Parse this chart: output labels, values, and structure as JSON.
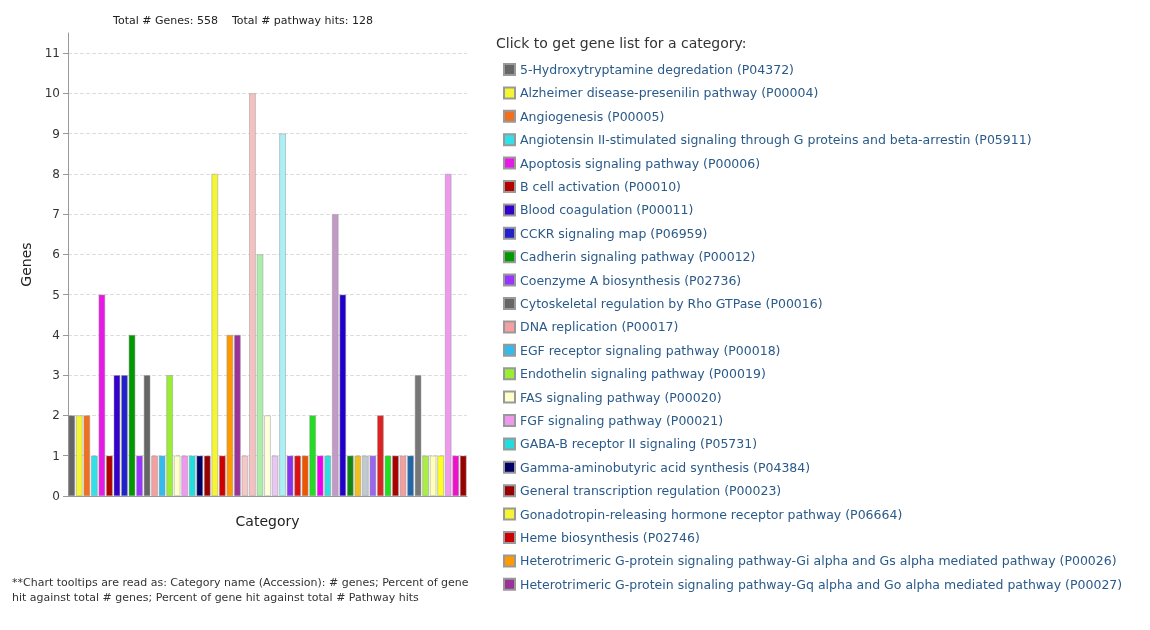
{
  "chart_data": {
    "type": "bar",
    "title": "Total # Genes: 558    Total # pathway hits: 128",
    "xlabel": "Category",
    "ylabel": "Genes",
    "legend_title": "Click to get gene list for a category:",
    "annotations": [
      "**Chart tooltips are read as: Category name (Accession): # genes; Percent of gene hit against total # genes; Percent of gene hit against total # Pathway hits"
    ],
    "categories": [
      null,
      null,
      null,
      null,
      null,
      null,
      null,
      null,
      null,
      null,
      null,
      null,
      null,
      null,
      null,
      null,
      null,
      null,
      null,
      null,
      null,
      null,
      null,
      null,
      null,
      null,
      null,
      null,
      null,
      null,
      null,
      null,
      null,
      null,
      null,
      null,
      null,
      null,
      null,
      null,
      null,
      null,
      null,
      null,
      null,
      null,
      null,
      null,
      null,
      null,
      null,
      null,
      null
    ],
    "stacked": true,
    "series": [
      {
        "name": "5-Hydroxytryptamine degredation (P04372)",
        "color": "#666666",
        "values": [
          2,
          null,
          null,
          null,
          null,
          null,
          null,
          null,
          null,
          null,
          null,
          null,
          null,
          null,
          null,
          null,
          null,
          null,
          null,
          null,
          null,
          null,
          null,
          null,
          null,
          null,
          null,
          null,
          null,
          null,
          null,
          null,
          null,
          null,
          null,
          null,
          null,
          null,
          null,
          null,
          null,
          null,
          null,
          null,
          null,
          null,
          null,
          null,
          null,
          null,
          null,
          null,
          null
        ]
      },
      {
        "name": "Alzheimer disease-presenilin pathway (P00004)",
        "color": "#f5f532",
        "values": [
          null,
          2,
          null,
          null,
          null,
          null,
          null,
          null,
          null,
          null,
          null,
          null,
          null,
          null,
          null,
          null,
          null,
          null,
          null,
          null,
          null,
          null,
          null,
          null,
          null,
          null,
          null,
          null,
          null,
          null,
          null,
          null,
          null,
          null,
          null,
          null,
          null,
          null,
          null,
          null,
          null,
          null,
          null,
          null,
          null,
          null,
          null,
          null,
          null,
          null,
          null,
          null,
          null
        ]
      },
      {
        "name": "Angiogenesis (P00005)",
        "color": "#f07020",
        "values": [
          null,
          null,
          2,
          null,
          null,
          null,
          null,
          null,
          null,
          null,
          null,
          null,
          null,
          null,
          null,
          null,
          null,
          null,
          null,
          null,
          null,
          null,
          null,
          null,
          null,
          null,
          null,
          null,
          null,
          null,
          null,
          null,
          null,
          null,
          null,
          null,
          null,
          null,
          null,
          null,
          null,
          null,
          null,
          null,
          null,
          null,
          null,
          null,
          null,
          null,
          null,
          null,
          null
        ]
      },
      {
        "name": "Angiotensin II-stimulated signaling through G proteins and beta-arrestin (P05911)",
        "color": "#33e0e8",
        "values": [
          null,
          null,
          null,
          1,
          null,
          null,
          null,
          null,
          null,
          null,
          null,
          null,
          null,
          null,
          null,
          null,
          null,
          null,
          null,
          null,
          null,
          null,
          null,
          null,
          null,
          null,
          null,
          null,
          null,
          null,
          null,
          null,
          null,
          null,
          null,
          null,
          null,
          null,
          null,
          null,
          null,
          null,
          null,
          null,
          null,
          null,
          null,
          null,
          null,
          null,
          null,
          null,
          null
        ]
      },
      {
        "name": "Apoptosis signaling pathway (P00006)",
        "color": "#e619e6",
        "values": [
          null,
          null,
          null,
          null,
          5,
          null,
          null,
          null,
          null,
          null,
          null,
          null,
          null,
          null,
          null,
          null,
          null,
          null,
          null,
          null,
          null,
          null,
          null,
          null,
          null,
          null,
          null,
          null,
          null,
          null,
          null,
          null,
          null,
          null,
          null,
          null,
          null,
          null,
          null,
          null,
          null,
          null,
          null,
          null,
          null,
          null,
          null,
          null,
          null,
          null,
          null,
          null,
          null
        ]
      },
      {
        "name": "B cell activation (P00010)",
        "color": "#b30000",
        "values": [
          null,
          null,
          null,
          null,
          null,
          1,
          null,
          null,
          null,
          null,
          null,
          null,
          null,
          null,
          null,
          null,
          null,
          null,
          null,
          null,
          null,
          null,
          null,
          null,
          null,
          null,
          null,
          null,
          null,
          null,
          null,
          null,
          null,
          null,
          null,
          null,
          null,
          null,
          null,
          null,
          null,
          null,
          null,
          null,
          null,
          null,
          null,
          null,
          null,
          null,
          null,
          null,
          null
        ]
      },
      {
        "name": "Blood coagulation (P00011)",
        "color": "#3300cc",
        "values": [
          null,
          null,
          null,
          null,
          null,
          null,
          3,
          null,
          null,
          null,
          null,
          null,
          null,
          null,
          null,
          null,
          null,
          null,
          null,
          null,
          null,
          null,
          null,
          null,
          null,
          null,
          null,
          null,
          null,
          null,
          null,
          null,
          null,
          null,
          null,
          null,
          null,
          null,
          null,
          null,
          null,
          null,
          null,
          null,
          null,
          null,
          null,
          null,
          null,
          null,
          null,
          null,
          null
        ]
      },
      {
        "name": "CCKR signaling map (P06959)",
        "color": "#2222cc",
        "values": [
          null,
          null,
          null,
          null,
          null,
          null,
          null,
          3,
          null,
          null,
          null,
          null,
          null,
          null,
          null,
          null,
          null,
          null,
          null,
          null,
          null,
          null,
          null,
          null,
          null,
          null,
          null,
          null,
          null,
          null,
          null,
          null,
          null,
          null,
          null,
          null,
          null,
          null,
          null,
          null,
          null,
          null,
          null,
          null,
          null,
          null,
          null,
          null,
          null,
          null,
          null,
          null,
          null
        ]
      },
      {
        "name": "Cadherin signaling pathway (P00012)",
        "color": "#009900",
        "values": [
          null,
          null,
          null,
          null,
          null,
          null,
          null,
          null,
          4,
          null,
          null,
          null,
          null,
          null,
          null,
          null,
          null,
          null,
          null,
          null,
          null,
          null,
          null,
          null,
          null,
          null,
          null,
          null,
          null,
          null,
          null,
          null,
          null,
          null,
          null,
          null,
          null,
          null,
          null,
          null,
          null,
          null,
          null,
          null,
          null,
          null,
          null,
          null,
          null,
          null,
          null,
          null,
          null
        ]
      },
      {
        "name": "Coenzyme A biosynthesis (P02736)",
        "color": "#9933ff",
        "values": [
          null,
          null,
          null,
          null,
          null,
          null,
          null,
          null,
          null,
          1,
          null,
          null,
          null,
          null,
          null,
          null,
          null,
          null,
          null,
          null,
          null,
          null,
          null,
          null,
          null,
          null,
          null,
          null,
          null,
          null,
          null,
          null,
          null,
          null,
          null,
          null,
          null,
          null,
          null,
          null,
          null,
          null,
          null,
          null,
          null,
          null,
          null,
          null,
          null,
          null,
          null,
          null,
          null
        ]
      },
      {
        "name": "Cytoskeletal regulation by Rho GTPase (P00016)",
        "color": "#666666",
        "values": [
          null,
          null,
          null,
          null,
          null,
          null,
          null,
          null,
          null,
          null,
          3,
          null,
          null,
          null,
          null,
          null,
          null,
          null,
          null,
          null,
          null,
          null,
          null,
          null,
          null,
          null,
          null,
          null,
          null,
          null,
          null,
          null,
          null,
          null,
          null,
          null,
          null,
          null,
          null,
          null,
          null,
          null,
          null,
          null,
          null,
          null,
          null,
          null,
          null,
          null,
          null,
          null,
          null
        ]
      },
      {
        "name": "DNA replication (P00017)",
        "color": "#f4a0a0",
        "values": [
          null,
          null,
          null,
          null,
          null,
          null,
          null,
          null,
          null,
          null,
          null,
          1,
          null,
          null,
          null,
          null,
          null,
          null,
          null,
          null,
          null,
          null,
          null,
          null,
          null,
          null,
          null,
          null,
          null,
          null,
          null,
          null,
          null,
          null,
          null,
          null,
          null,
          null,
          null,
          null,
          null,
          null,
          null,
          null,
          null,
          null,
          null,
          null,
          null,
          null,
          null,
          null,
          null
        ]
      },
      {
        "name": "EGF receptor signaling pathway (P00018)",
        "color": "#33bbee",
        "values": [
          null,
          null,
          null,
          null,
          null,
          null,
          null,
          null,
          null,
          null,
          null,
          null,
          1,
          null,
          null,
          null,
          null,
          null,
          null,
          null,
          null,
          null,
          null,
          null,
          null,
          null,
          null,
          null,
          null,
          null,
          null,
          null,
          null,
          null,
          null,
          null,
          null,
          null,
          null,
          null,
          null,
          null,
          null,
          null,
          null,
          null,
          null,
          null,
          null,
          null,
          null,
          null,
          null
        ]
      },
      {
        "name": "Endothelin signaling pathway (P00019)",
        "color": "#99ee33",
        "values": [
          null,
          null,
          null,
          null,
          null,
          null,
          null,
          null,
          null,
          null,
          null,
          null,
          null,
          3,
          null,
          null,
          null,
          null,
          null,
          null,
          null,
          null,
          null,
          null,
          null,
          null,
          null,
          null,
          null,
          null,
          null,
          null,
          null,
          null,
          null,
          null,
          null,
          null,
          null,
          null,
          null,
          null,
          null,
          null,
          null,
          null,
          null,
          null,
          null,
          null,
          null,
          null,
          null
        ]
      },
      {
        "name": "FAS signaling pathway (P00020)",
        "color": "#ffffcc",
        "values": [
          null,
          null,
          null,
          null,
          null,
          null,
          null,
          null,
          null,
          null,
          null,
          null,
          null,
          null,
          1,
          null,
          null,
          null,
          null,
          null,
          null,
          null,
          null,
          null,
          null,
          null,
          null,
          null,
          null,
          null,
          null,
          null,
          null,
          null,
          null,
          null,
          null,
          null,
          null,
          null,
          null,
          null,
          null,
          null,
          null,
          null,
          null,
          null,
          null,
          null,
          null,
          null,
          null
        ]
      },
      {
        "name": "FGF signaling pathway (P00021)",
        "color": "#ee99ee",
        "values": [
          null,
          null,
          null,
          null,
          null,
          null,
          null,
          null,
          null,
          null,
          null,
          null,
          null,
          null,
          null,
          1,
          null,
          null,
          null,
          null,
          null,
          null,
          null,
          null,
          null,
          null,
          null,
          null,
          null,
          null,
          null,
          null,
          null,
          null,
          null,
          null,
          null,
          null,
          null,
          null,
          null,
          null,
          null,
          null,
          null,
          null,
          null,
          null,
          null,
          null,
          null,
          null,
          null
        ]
      },
      {
        "name": "GABA-B receptor II signaling (P05731)",
        "color": "#22dddd",
        "values": [
          null,
          null,
          null,
          null,
          null,
          null,
          null,
          null,
          null,
          null,
          null,
          null,
          null,
          null,
          null,
          null,
          1,
          null,
          null,
          null,
          null,
          null,
          null,
          null,
          null,
          null,
          null,
          null,
          null,
          null,
          null,
          null,
          null,
          null,
          null,
          null,
          null,
          null,
          null,
          null,
          null,
          null,
          null,
          null,
          null,
          null,
          null,
          null,
          null,
          null,
          null,
          null,
          null
        ]
      },
      {
        "name": "Gamma-aminobutyric acid synthesis (P04384)",
        "color": "#000066",
        "values": [
          null,
          null,
          null,
          null,
          null,
          null,
          null,
          null,
          null,
          null,
          null,
          null,
          null,
          null,
          null,
          null,
          null,
          1,
          null,
          null,
          null,
          null,
          null,
          null,
          null,
          null,
          null,
          null,
          null,
          null,
          null,
          null,
          null,
          null,
          null,
          null,
          null,
          null,
          null,
          null,
          null,
          null,
          null,
          null,
          null,
          null,
          null,
          null,
          null,
          null,
          null,
          null,
          null
        ]
      },
      {
        "name": "General transcription regulation (P00023)",
        "color": "#990000",
        "values": [
          null,
          null,
          null,
          null,
          null,
          null,
          null,
          null,
          null,
          null,
          null,
          null,
          null,
          null,
          null,
          null,
          null,
          null,
          1,
          null,
          null,
          null,
          null,
          null,
          null,
          null,
          null,
          null,
          null,
          null,
          null,
          null,
          null,
          null,
          null,
          null,
          null,
          null,
          null,
          null,
          null,
          null,
          null,
          null,
          null,
          null,
          null,
          null,
          null,
          null,
          null,
          null,
          null
        ]
      },
      {
        "name": "Gonadotropin-releasing hormone receptor pathway (P06664)",
        "color": "#f5f533",
        "values": [
          null,
          null,
          null,
          null,
          null,
          null,
          null,
          null,
          null,
          null,
          null,
          null,
          null,
          null,
          null,
          null,
          null,
          null,
          null,
          8,
          null,
          null,
          null,
          null,
          null,
          null,
          null,
          null,
          null,
          null,
          null,
          null,
          null,
          null,
          null,
          null,
          null,
          null,
          null,
          null,
          null,
          null,
          null,
          null,
          null,
          null,
          null,
          null,
          null,
          null,
          null,
          null,
          null
        ]
      },
      {
        "name": "Heme biosynthesis (P02746)",
        "color": "#cc0000",
        "values": [
          null,
          null,
          null,
          null,
          null,
          null,
          null,
          null,
          null,
          null,
          null,
          null,
          null,
          null,
          null,
          null,
          null,
          null,
          null,
          null,
          1,
          null,
          null,
          null,
          null,
          null,
          null,
          null,
          null,
          null,
          null,
          null,
          null,
          null,
          null,
          null,
          null,
          null,
          null,
          null,
          null,
          null,
          null,
          null,
          null,
          null,
          null,
          null,
          null,
          null,
          null,
          null,
          null
        ]
      },
      {
        "name": "Heterotrimeric G-protein signaling pathway-Gi alpha and Gs alpha mediated pathway (P00026)",
        "color": "#ff9900",
        "values": [
          null,
          null,
          null,
          null,
          null,
          null,
          null,
          null,
          null,
          null,
          null,
          null,
          null,
          null,
          null,
          null,
          null,
          null,
          null,
          null,
          null,
          4,
          null,
          null,
          null,
          null,
          null,
          null,
          null,
          null,
          null,
          null,
          null,
          null,
          null,
          null,
          null,
          null,
          null,
          null,
          null,
          null,
          null,
          null,
          null,
          null,
          null,
          null,
          null,
          null,
          null,
          null,
          null
        ]
      },
      {
        "name": "Heterotrimeric G-protein signaling pathway-Gq alpha and Go alpha mediated pathway (P00027)",
        "color": "#993399",
        "values": [
          null,
          null,
          null,
          null,
          null,
          null,
          null,
          null,
          null,
          null,
          null,
          null,
          null,
          null,
          null,
          null,
          null,
          null,
          null,
          null,
          null,
          null,
          4,
          null,
          null,
          null,
          null,
          null,
          null,
          null,
          null,
          null,
          null,
          null,
          null,
          null,
          null,
          null,
          null,
          null,
          null,
          null,
          null,
          null,
          null,
          null,
          null,
          null,
          null,
          null,
          null,
          null,
          null
        ]
      },
      {
        "values": [
          null,
          null,
          null,
          null,
          null,
          null,
          null,
          null,
          null,
          null,
          null,
          null,
          null,
          null,
          null,
          null,
          null,
          null,
          null,
          null,
          null,
          null,
          null,
          1,
          10,
          6,
          2,
          1,
          9,
          1,
          1,
          1,
          2,
          1,
          1,
          7,
          5,
          1,
          1,
          1,
          1,
          2,
          1,
          1,
          1,
          1,
          3,
          1,
          1,
          1,
          8,
          1,
          1
        ],
        "colors": [
          null,
          null,
          null,
          null,
          null,
          null,
          null,
          null,
          null,
          null,
          null,
          null,
          null,
          null,
          null,
          null,
          null,
          null,
          null,
          null,
          null,
          null,
          null,
          "#f5c8c8",
          "#f5c0c0",
          "#aaeeaa",
          "#ffffdd",
          "#e6c8f0",
          "#aaf0f5",
          "#8833ee",
          "#dd1111",
          "#ee5500",
          "#22dd22",
          "#ee00ee",
          "#33dddd",
          "#c399c8",
          "#2200cc",
          "#118811",
          "#f0c020",
          "#c0c8d0",
          "#9966ee",
          "#dd2222",
          "#22dd22",
          "#aa0000",
          "#f0a0a0",
          "#2266aa",
          "#777777",
          "#aaee44",
          "#ffffbb",
          "#ffff22",
          "#ee99ee",
          "#ee11cc",
          "#990000"
        ]
      }
    ],
    "ylim": [
      0,
      11.5
    ],
    "yticks": [
      0,
      1,
      2,
      3,
      4,
      5,
      6,
      7,
      8,
      9,
      10,
      11
    ],
    "grid": "y",
    "legend": "right",
    "tick_labels": "y"
  }
}
